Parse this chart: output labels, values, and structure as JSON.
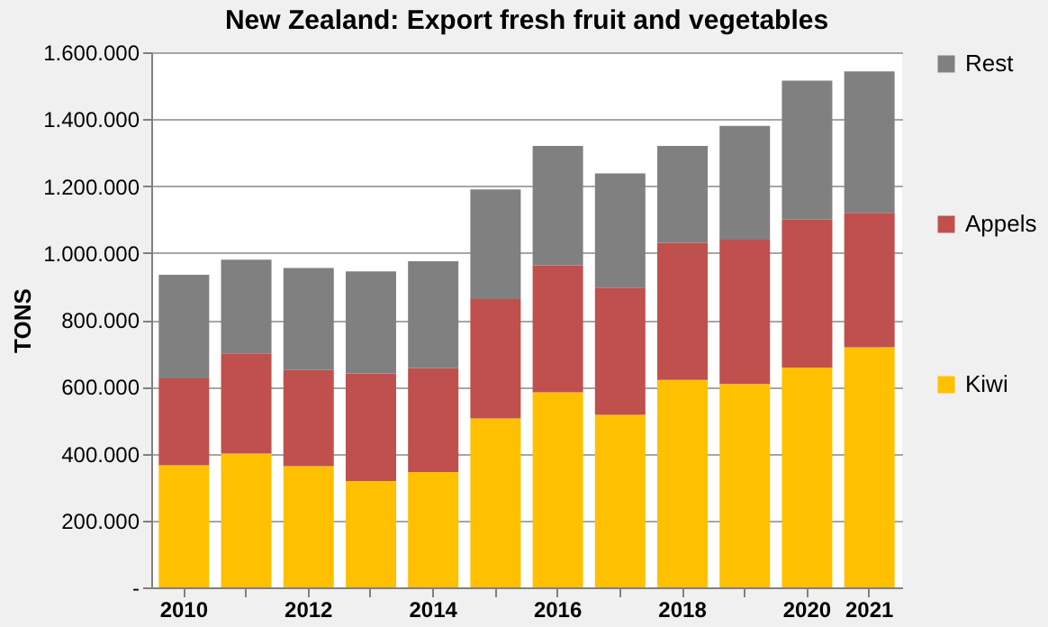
{
  "chart_data": {
    "type": "bar",
    "title": "New Zealand: Export fresh fruit and vegetables",
    "ylabel": "TONS",
    "categories": [
      "2010",
      null,
      "2012",
      null,
      "2014",
      null,
      "2016",
      null,
      "2018",
      null,
      "2020",
      "2021"
    ],
    "series": [
      {
        "name": "Kiwi",
        "color": "#ffc000",
        "values": [
          365000,
          400000,
          362000,
          318000,
          345000,
          505000,
          583000,
          516000,
          620000,
          608000,
          657000,
          718000
        ]
      },
      {
        "name": "Appels",
        "color": "#c0504d",
        "values": [
          260000,
          300000,
          288000,
          322000,
          310000,
          357000,
          380000,
          380000,
          410000,
          432000,
          443000,
          402000
        ]
      },
      {
        "name": "Rest",
        "color": "#808080",
        "values": [
          310000,
          280000,
          305000,
          305000,
          320000,
          328000,
          357000,
          342000,
          290000,
          340000,
          415000,
          423000
        ]
      }
    ],
    "stacked": true,
    "ylim": [
      0,
      1600000
    ],
    "yticks": [
      {
        "value": 0,
        "label": "-"
      },
      {
        "value": 200000,
        "label": "200.000"
      },
      {
        "value": 400000,
        "label": "400.000"
      },
      {
        "value": 600000,
        "label": "600.000"
      },
      {
        "value": 800000,
        "label": "800.000"
      },
      {
        "value": 1000000,
        "label": "1.000.000"
      },
      {
        "value": 1200000,
        "label": "1.200.000"
      },
      {
        "value": 1400000,
        "label": "1.400.000"
      },
      {
        "value": 1600000,
        "label": "1.600.000"
      }
    ],
    "grid": "y",
    "legend": "right"
  }
}
